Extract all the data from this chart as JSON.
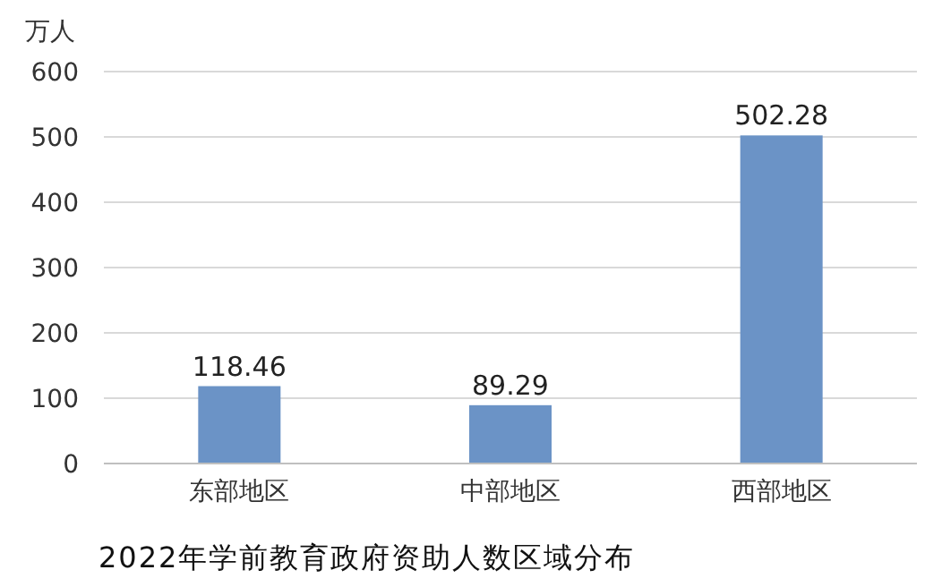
{
  "chart_data": {
    "type": "bar",
    "title": "2022年学前教育政府资助人数区域分布",
    "ylabel": "万人",
    "categories": [
      "东部地区",
      "中部地区",
      "西部地区"
    ],
    "values": [
      118.46,
      89.29,
      502.28
    ],
    "color": "#6b93c6",
    "ylim": [
      0,
      600
    ],
    "yticks": [
      0,
      100,
      200,
      300,
      400,
      500,
      600
    ],
    "grid": "y",
    "data_labels": true
  }
}
